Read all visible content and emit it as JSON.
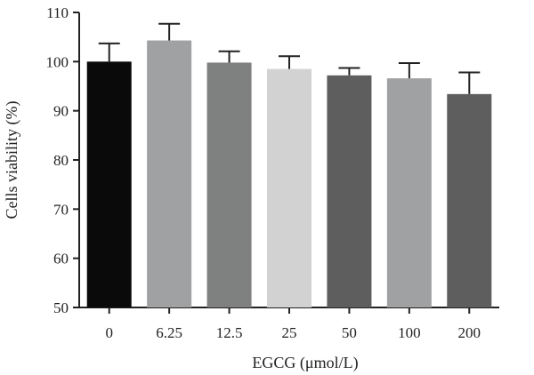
{
  "chart_data": {
    "type": "bar",
    "title": "",
    "xlabel": "EGCG (μmol/L)",
    "ylabel": "Cells viability (%)",
    "categories": [
      "0",
      "6.25",
      "12.5",
      "25",
      "50",
      "100",
      "200"
    ],
    "series": [
      {
        "values": [
          100.0,
          104.3,
          99.8,
          98.5,
          97.2,
          96.6,
          93.4
        ],
        "error": [
          3.7,
          3.4,
          2.3,
          2.6,
          1.5,
          3.1,
          4.4
        ]
      }
    ],
    "bar_colors": [
      "#0a0a0a",
      "#a0a1a3",
      "#7f8080",
      "#d2d2d2",
      "#5e5e5e",
      "#a0a1a3",
      "#5e5e5e"
    ],
    "ylim": [
      50,
      110
    ],
    "yticks": [
      50,
      60,
      70,
      80,
      90,
      100,
      110
    ],
    "grid": false,
    "error_bars": "upper"
  }
}
